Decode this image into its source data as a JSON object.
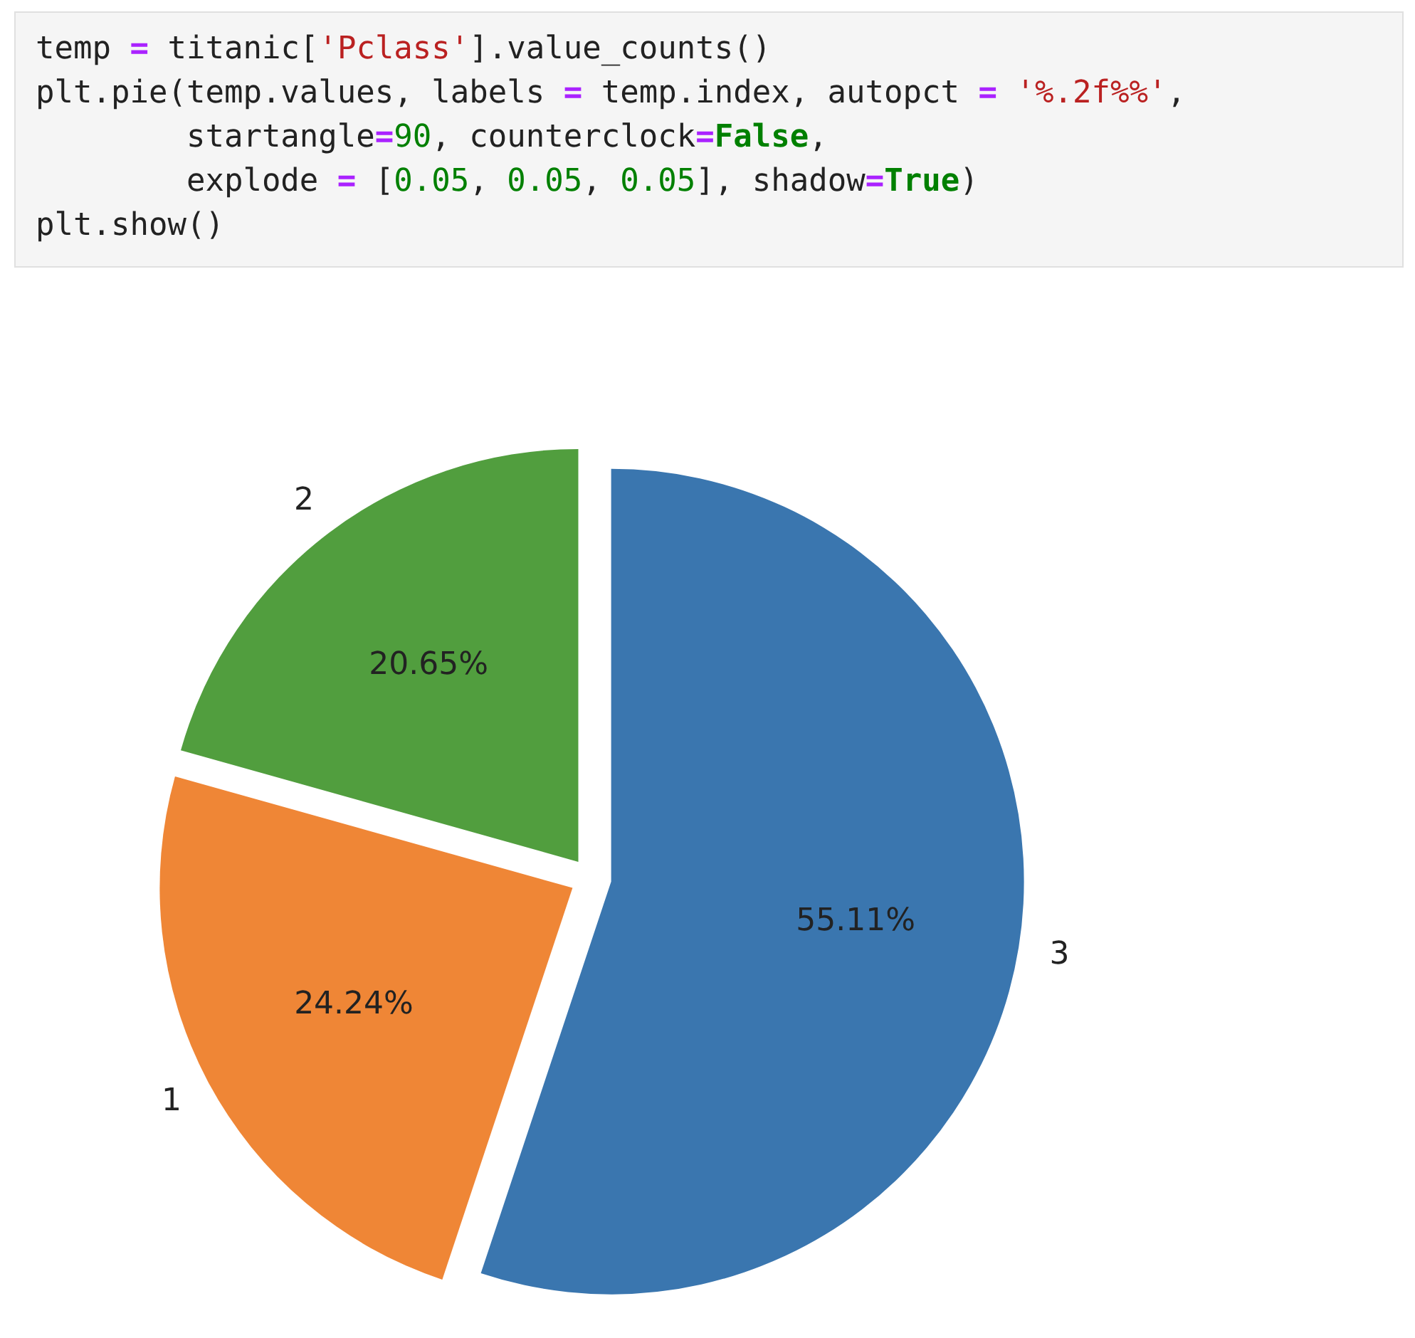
{
  "chart_data": {
    "type": "pie",
    "annotations": [
      "temp = titanic['Pclass'].value_counts()",
      "plt.pie(temp.values, labels = temp.index, autopct = '%.2f%%',",
      "        startangle=90, counterclock=False,",
      "        explode = [0.05, 0.05, 0.05], shadow=True)",
      "plt.show()"
    ],
    "categories": [
      "3",
      "1",
      "2"
    ],
    "values": [
      55.11,
      24.24,
      20.65
    ],
    "colors": [
      "#3a76af",
      "#ef8636",
      "#519e3e"
    ],
    "value_labels": [
      "55.11%",
      "24.24%",
      "20.65%"
    ],
    "legend": false
  }
}
